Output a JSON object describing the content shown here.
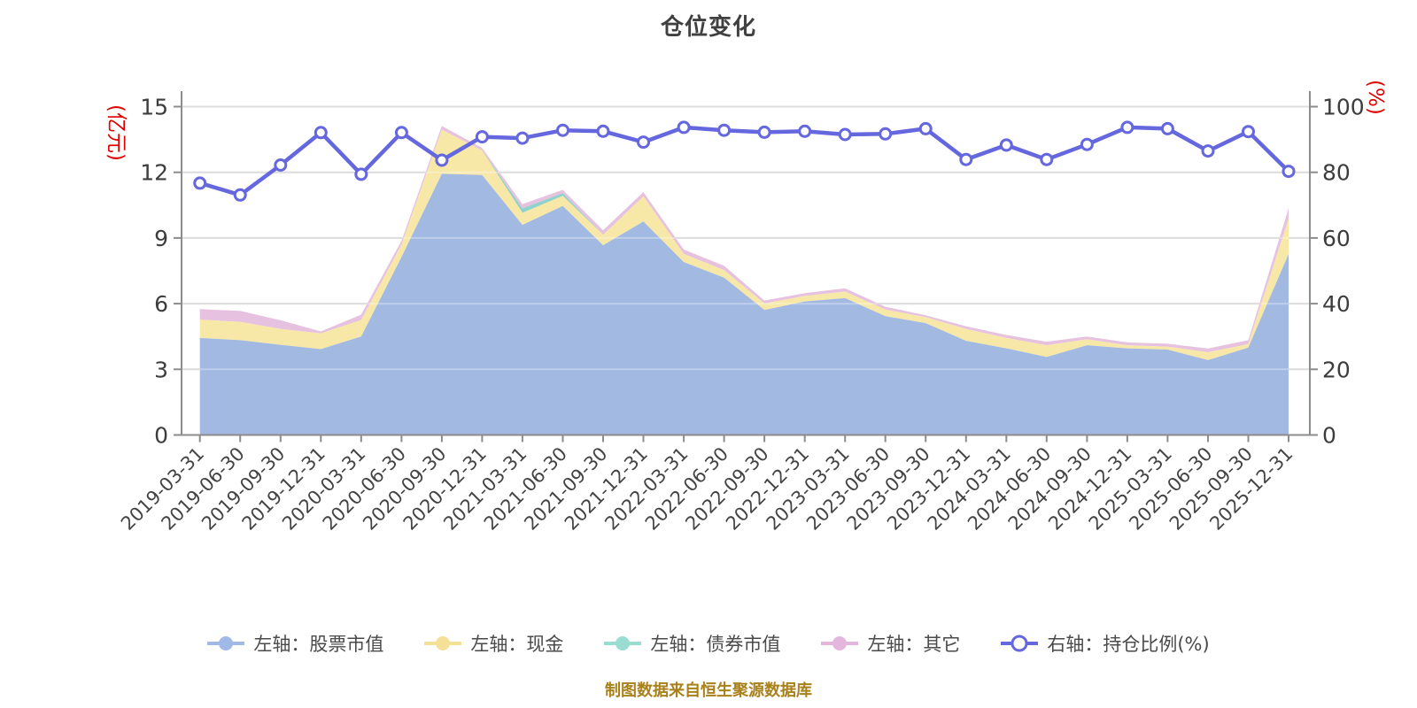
{
  "title": "仓位变化",
  "footer": "制图数据来自恒生聚源数据库",
  "legend": [
    {
      "label": "左轴：股票市值",
      "color": "#a0b9e6",
      "type": "area"
    },
    {
      "label": "左轴：现金",
      "color": "#f4e096",
      "type": "area"
    },
    {
      "label": "左轴：债券市值",
      "color": "#99dcd2",
      "type": "area"
    },
    {
      "label": "左轴：其它",
      "color": "#e4b5dd",
      "type": "area"
    },
    {
      "label": "右轴：持仓比例(%)",
      "color": "#ffffff",
      "border": "#6567de",
      "type": "line"
    }
  ],
  "chart_data": {
    "type": "area",
    "title": "仓位变化",
    "categories": [
      "2019-03-31",
      "2019-06-30",
      "2019-09-30",
      "2019-12-31",
      "2020-03-31",
      "2020-06-30",
      "2020-09-30",
      "2020-12-31",
      "2021-03-31",
      "2021-06-30",
      "2021-09-30",
      "2021-12-31",
      "2022-03-31",
      "2022-06-30",
      "2022-09-30",
      "2022-12-31",
      "2023-03-31",
      "2023-06-30",
      "2023-09-30",
      "2023-12-31",
      "2024-03-31",
      "2024-06-30",
      "2024-09-30",
      "2024-12-31",
      "2025-03-31",
      "2025-06-30",
      "2025-09-30",
      "2025-12-31"
    ],
    "series": [
      {
        "name": "左轴：股票市值",
        "axis": "left",
        "stack": true,
        "color": "#a2b9e2",
        "values": [
          4.43,
          4.33,
          4.12,
          3.92,
          4.5,
          8.13,
          11.93,
          11.88,
          9.6,
          10.46,
          8.67,
          9.75,
          7.9,
          7.19,
          5.71,
          6.1,
          6.25,
          5.43,
          5.11,
          4.3,
          3.96,
          3.56,
          4.1,
          3.96,
          3.9,
          3.42,
          3.99,
          8.27
        ]
      },
      {
        "name": "左轴：现金",
        "axis": "left",
        "stack": true,
        "color": "#f7e8a8",
        "values": [
          0.84,
          0.84,
          0.72,
          0.72,
          0.75,
          0.57,
          2.02,
          1.12,
          0.55,
          0.47,
          0.47,
          1.15,
          0.37,
          0.34,
          0.3,
          0.25,
          0.3,
          0.3,
          0.27,
          0.54,
          0.47,
          0.54,
          0.27,
          0.14,
          0.13,
          0.36,
          0.16,
          1.61
        ]
      },
      {
        "name": "左轴：债券市值",
        "axis": "left",
        "stack": true,
        "color": "#8ed2ca",
        "values": [
          0,
          0,
          0,
          0,
          0,
          0,
          0,
          0,
          0.2,
          0.12,
          0,
          0,
          0,
          0,
          0,
          0,
          0,
          0,
          0,
          0,
          0,
          0,
          0,
          0,
          0,
          0,
          0,
          0
        ]
      },
      {
        "name": "左轴：其它",
        "axis": "left",
        "stack": true,
        "color": "#e6c2e0",
        "values": [
          0.48,
          0.5,
          0.4,
          0.09,
          0.25,
          0.17,
          0.17,
          0.11,
          0.2,
          0.15,
          0.21,
          0.2,
          0.2,
          0.2,
          0.13,
          0.13,
          0.15,
          0.13,
          0.09,
          0.13,
          0.14,
          0.16,
          0.13,
          0.13,
          0.14,
          0.17,
          0.18,
          0.48
        ]
      },
      {
        "name": "右轴：持仓比例(%)",
        "axis": "right",
        "type": "line",
        "color": "#6567de",
        "values": [
          76.7,
          73.1,
          82.2,
          92.1,
          79.4,
          92.1,
          83.7,
          90.8,
          90.4,
          92.8,
          92.5,
          89.2,
          93.7,
          92.8,
          92.2,
          92.5,
          91.5,
          91.7,
          93.3,
          83.9,
          88.3,
          83.9,
          88.5,
          93.7,
          93.3,
          86.5,
          92.4,
          80.3
        ]
      }
    ],
    "left_axis": {
      "name": "(亿元)",
      "name_color": "#e00000",
      "min": 0,
      "max": 15,
      "ticks": [
        0,
        3,
        6,
        9,
        12,
        15
      ]
    },
    "right_axis": {
      "name": "(%)",
      "name_color": "#e00000",
      "min": 0,
      "max": 100,
      "ticks": [
        0,
        20,
        40,
        60,
        80,
        100
      ]
    },
    "grid": true,
    "legend_position": "bottom"
  }
}
